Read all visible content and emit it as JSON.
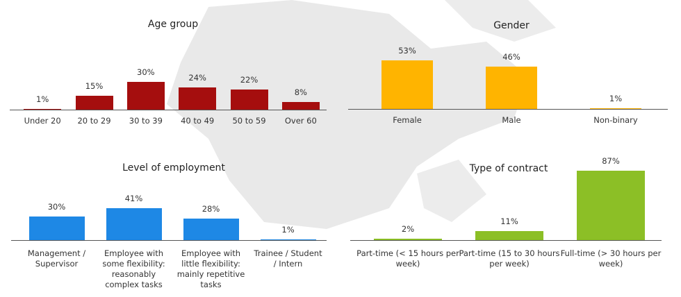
{
  "chart_data": [
    {
      "type": "bar",
      "title": "Age group",
      "categories": [
        "Under 20",
        "20 to 29",
        "30 to 39",
        "40 to 49",
        "50 to 59",
        "Over 60"
      ],
      "values": [
        1,
        15,
        30,
        24,
        22,
        8
      ],
      "value_labels": [
        "1%",
        "15%",
        "30%",
        "24%",
        "22%",
        "8%"
      ],
      "color": "#a50e0e"
    },
    {
      "type": "bar",
      "title": "Gender",
      "categories": [
        "Female",
        "Male",
        "Non-binary"
      ],
      "values": [
        53,
        46,
        1
      ],
      "value_labels": [
        "53%",
        "46%",
        "1%"
      ],
      "color": "#ffb400"
    },
    {
      "type": "bar",
      "title": "Level of employment",
      "categories": [
        "Management / Supervisor",
        "Employee with some flexibility: reasonably complex tasks",
        "Employee with little flexibility: mainly repetitive tasks",
        "Trainee / Student / Intern"
      ],
      "values": [
        30,
        41,
        28,
        1
      ],
      "value_labels": [
        "30%",
        "41%",
        "28%",
        "1%"
      ],
      "color": "#1e88e5"
    },
    {
      "type": "bar",
      "title": "Type of contract",
      "categories": [
        "Part-time (< 15 hours per week)",
        "Part-time (15 to 30 hours per week)",
        "Full-time (> 30 hours per week)"
      ],
      "values": [
        2,
        11,
        87
      ],
      "value_labels": [
        "2%",
        "11%",
        "87%"
      ],
      "color": "#8cbf26"
    }
  ]
}
